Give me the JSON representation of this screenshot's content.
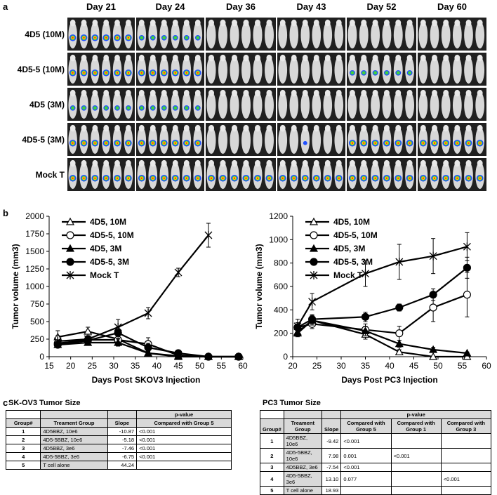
{
  "panel_labels": {
    "a": "a",
    "b": "b",
    "c": "c"
  },
  "imaging": {
    "days": [
      "Day 21",
      "Day 24",
      "Day 36",
      "Day 43",
      "Day 52",
      "Day 60"
    ],
    "groups": [
      "4D5 (10M)",
      "4D5-5 (10M)",
      "4D5 (3M)",
      "4D5-5 (3M)",
      "Mock T"
    ]
  },
  "chart_data": [
    {
      "type": "line",
      "xlabel": "Days Post SKOV3 Injection",
      "ylabel": "Tumor volume (mm3)",
      "xlim": [
        15,
        60
      ],
      "ylim": [
        0,
        2000
      ],
      "xticks": [
        15,
        20,
        25,
        30,
        35,
        40,
        45,
        50,
        55,
        60
      ],
      "yticks": [
        0,
        250,
        500,
        750,
        1000,
        1250,
        1500,
        1750,
        2000
      ],
      "legend_position": "top-left",
      "series": [
        {
          "name": "4D5, 10M",
          "marker": "open-triangle",
          "x": [
            17,
            24,
            31,
            38,
            45,
            52,
            59
          ],
          "y": [
            280,
            360,
            250,
            50,
            10,
            0,
            0
          ],
          "err": [
            90,
            60,
            60,
            30,
            10,
            0,
            0
          ]
        },
        {
          "name": "4D5-5, 10M",
          "marker": "open-circle",
          "x": [
            17,
            24,
            31,
            38,
            45,
            52,
            59
          ],
          "y": [
            190,
            240,
            240,
            180,
            20,
            0,
            0
          ],
          "err": [
            40,
            50,
            60,
            90,
            15,
            0,
            0
          ]
        },
        {
          "name": "4D5, 3M",
          "marker": "filled-triangle",
          "x": [
            17,
            24,
            31,
            38,
            45,
            52,
            59
          ],
          "y": [
            170,
            200,
            200,
            50,
            0,
            0,
            0
          ],
          "err": [
            40,
            40,
            50,
            30,
            0,
            0,
            0
          ]
        },
        {
          "name": "4D5-5, 3M",
          "marker": "filled-circle",
          "x": [
            17,
            24,
            31,
            38,
            45,
            52,
            59
          ],
          "y": [
            170,
            230,
            340,
            130,
            50,
            0,
            0
          ],
          "err": [
            40,
            50,
            80,
            60,
            20,
            0,
            0
          ]
        },
        {
          "name": "Mock T",
          "marker": "star",
          "x": [
            17,
            24,
            31,
            38,
            45,
            52
          ],
          "y": [
            220,
            250,
            420,
            620,
            1200,
            1730
          ],
          "err": [
            80,
            70,
            110,
            80,
            60,
            170
          ]
        }
      ]
    },
    {
      "type": "line",
      "xlabel": "Days Post PC3 Injection",
      "ylabel": "Tumor volume (mm3)",
      "xlim": [
        20,
        60
      ],
      "ylim": [
        0,
        1200
      ],
      "xticks": [
        20,
        25,
        30,
        35,
        40,
        45,
        50,
        55,
        60
      ],
      "yticks": [
        0,
        200,
        400,
        600,
        800,
        1000,
        1200
      ],
      "legend_position": "top-left",
      "series": [
        {
          "name": "4D5, 10M",
          "marker": "open-triangle",
          "x": [
            21,
            24,
            35,
            42,
            49,
            56
          ],
          "y": [
            210,
            310,
            190,
            40,
            0,
            0
          ],
          "err": [
            30,
            40,
            40,
            20,
            0,
            0
          ]
        },
        {
          "name": "4D5-5, 10M",
          "marker": "open-circle",
          "x": [
            21,
            24,
            35,
            42,
            49,
            56
          ],
          "y": [
            250,
            280,
            230,
            200,
            420,
            530
          ],
          "err": [
            40,
            40,
            50,
            60,
            120,
            190
          ]
        },
        {
          "name": "4D5, 3M",
          "marker": "filled-triangle",
          "x": [
            21,
            24,
            35,
            42,
            49,
            56
          ],
          "y": [
            200,
            310,
            220,
            110,
            60,
            30
          ],
          "err": [
            30,
            40,
            40,
            30,
            20,
            10
          ]
        },
        {
          "name": "4D5-5, 3M",
          "marker": "filled-circle",
          "x": [
            21,
            24,
            35,
            42,
            49,
            56
          ],
          "y": [
            250,
            320,
            340,
            420,
            530,
            760
          ],
          "err": [
            40,
            40,
            40,
            30,
            50,
            90
          ]
        },
        {
          "name": "Mock T",
          "marker": "star",
          "x": [
            21,
            24,
            35,
            42,
            49,
            56
          ],
          "y": [
            260,
            470,
            710,
            810,
            860,
            940
          ],
          "err": [
            60,
            70,
            110,
            150,
            150,
            120
          ]
        }
      ]
    }
  ],
  "tables": {
    "skov3": {
      "title": "SK-OV3 Tumor Size",
      "pvalue_header": "p-value",
      "headers": [
        "Group#",
        "Treament Group",
        "Slope",
        "Compared with Group 5"
      ],
      "rows": [
        [
          "1",
          "4D5BBZ, 10e6",
          "-10.87",
          "<0.001"
        ],
        [
          "2",
          "4D5-5BBZ, 10e6",
          "-5.18",
          "<0.001"
        ],
        [
          "3",
          "4D5BBZ, 3e6",
          "-7.46",
          "<0.001"
        ],
        [
          "4",
          "4D5-5BBZ, 3e6",
          "-6.75",
          "<0.001"
        ],
        [
          "5",
          "T cell alone",
          "44.24",
          ""
        ]
      ]
    },
    "pc3": {
      "title": "PC3 Tumor Size",
      "pvalue_header": "p-value",
      "headers": [
        "Group#",
        "Treament Group",
        "Slope",
        "Compared with Group 5",
        "Compared with Group 1",
        "Compared with Group 3"
      ],
      "rows": [
        [
          "1",
          "4D5BBZ, 10e6",
          "-9.42",
          "<0.001",
          "",
          ""
        ],
        [
          "2",
          "4D5-5BBZ, 10e6",
          "7.98",
          "0.001",
          "<0.001",
          ""
        ],
        [
          "3",
          "4D5BBZ, 3e6",
          "-7.54",
          "<0.001",
          "",
          ""
        ],
        [
          "4",
          "4D5-5BBZ, 3e6",
          "13.10",
          "0.077",
          "",
          "<0.001"
        ],
        [
          "5",
          "T cell alone",
          "18.93",
          "",
          "",
          ""
        ]
      ]
    }
  }
}
